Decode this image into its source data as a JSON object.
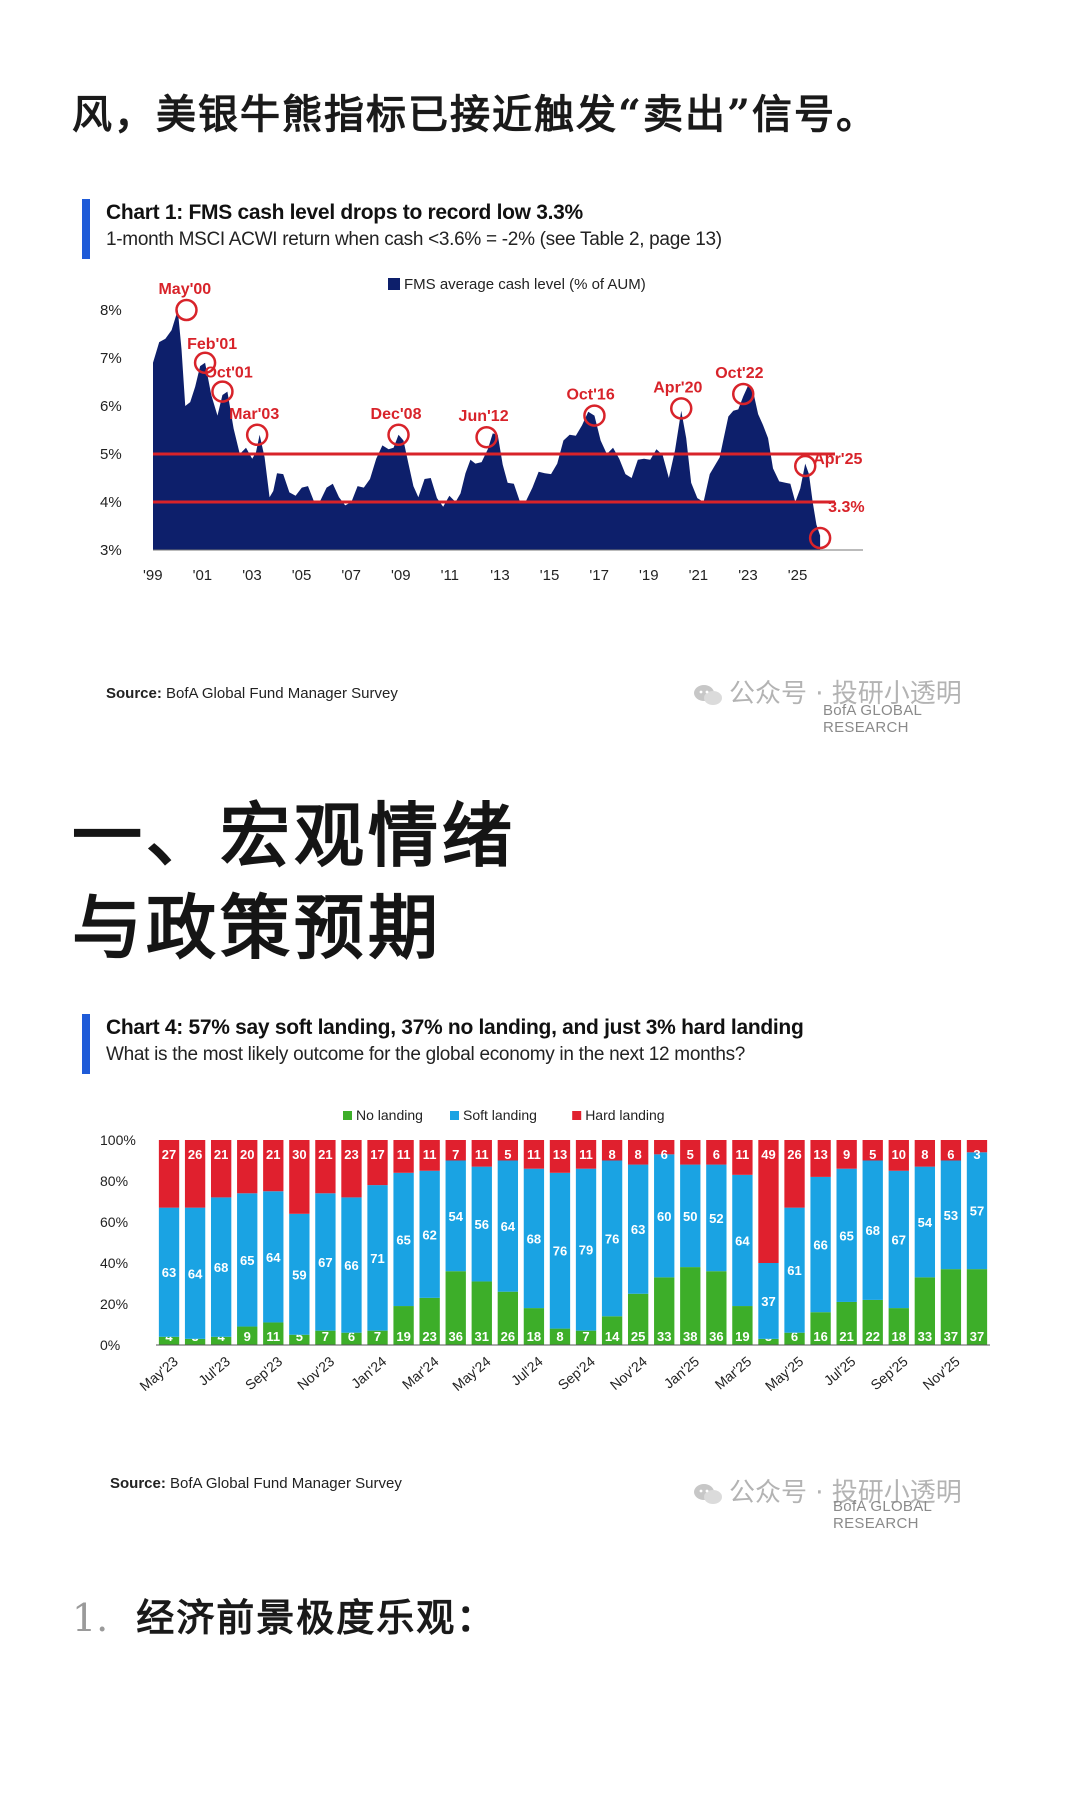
{
  "intro_text": "风，美银牛熊指标已接近触发“卖出”信号。",
  "section_heading": {
    "line1": "一、宏观情绪",
    "line2": "与政策预期"
  },
  "list_item": {
    "number": "1.",
    "text": "经济前景极度乐观："
  },
  "watermark": {
    "icon": "wechat-icon",
    "text": "公众号 · 投研小透明",
    "brand": "BofA GLOBAL RESEARCH"
  },
  "chart1": {
    "title": "Chart 1: FMS cash level drops to record low 3.3%",
    "subtitle": "1-month MSCI ACWI return when cash <3.6% = -2% (see Table 2, page 13)",
    "source_label": "Source:",
    "source_text": "BofA Global Fund Manager Survey"
  },
  "chart2": {
    "title": "Chart 4: 57% say soft landing, 37% no landing, and just 3% hard landing",
    "subtitle": "What is the most likely outcome for the global economy in the next 12 months?",
    "source_label": "Source:",
    "source_text": "BofA Global Fund Manager Survey"
  },
  "chart_data": [
    {
      "type": "area",
      "title": "Chart 1: FMS cash level drops to record low 3.3%",
      "subtitle": "1-month MSCI ACWI return when cash <3.6% = -2% (see Table 2, page 13)",
      "series": [
        {
          "name": "FMS average cash level (% of AUM)",
          "color": "#0d1f6b",
          "x": [
            1999.0,
            1999.5,
            2000.0,
            2000.3,
            2000.7,
            2001.1,
            2001.6,
            2002.0,
            2002.5,
            2003.0,
            2003.3,
            2003.7,
            2004.0,
            2004.5,
            2005.0,
            2005.5,
            2006.0,
            2006.5,
            2007.0,
            2007.5,
            2008.0,
            2008.5,
            2008.9,
            2009.3,
            2009.7,
            2010.2,
            2010.7,
            2011.2,
            2011.6,
            2012.0,
            2012.5,
            2012.9,
            2013.3,
            2013.8,
            2014.3,
            2014.8,
            2015.3,
            2015.8,
            2016.3,
            2016.8,
            2017.3,
            2017.8,
            2018.3,
            2018.8,
            2019.3,
            2019.8,
            2020.3,
            2020.7,
            2021.2,
            2021.7,
            2022.0,
            2022.4,
            2022.8,
            2023.2,
            2023.6,
            2024.0,
            2024.5,
            2024.9,
            2025.3,
            2025.6,
            2025.9
          ],
          "values": [
            6.9,
            7.4,
            8.0,
            6.0,
            6.4,
            6.9,
            5.8,
            6.3,
            5.0,
            4.9,
            5.4,
            4.1,
            4.6,
            4.2,
            4.3,
            4.0,
            4.3,
            4.1,
            4.0,
            4.3,
            4.9,
            5.1,
            5.4,
            4.8,
            4.1,
            4.5,
            3.9,
            4.0,
            4.6,
            4.8,
            5.1,
            5.4,
            4.4,
            4.0,
            4.3,
            4.6,
            4.8,
            5.4,
            5.6,
            5.8,
            5.0,
            4.9,
            4.5,
            4.9,
            5.1,
            4.5,
            5.9,
            4.4,
            4.0,
            4.8,
            5.3,
            5.9,
            6.2,
            6.3,
            5.6,
            4.7,
            4.4,
            4.0,
            4.8,
            4.0,
            3.3
          ]
        }
      ],
      "ylim": [
        3,
        8
      ],
      "ytick_labels": [
        "3%",
        "4%",
        "5%",
        "6%",
        "7%",
        "8%"
      ],
      "xtick_labels": [
        "'99",
        "'01",
        "'03",
        "'05",
        "'07",
        "'09",
        "'11",
        "'13",
        "'15",
        "'17",
        "'19",
        "'21",
        "'23",
        "'25"
      ],
      "reference_lines": [
        5.0,
        4.0
      ],
      "annotations": [
        {
          "label": "May'00",
          "x": 2000.35,
          "y": 8.0
        },
        {
          "label": "Feb'01",
          "x": 2001.1,
          "y": 6.9
        },
        {
          "label": "Oct'01",
          "x": 2001.8,
          "y": 6.3
        },
        {
          "label": "Mar'03",
          "x": 2003.2,
          "y": 5.4
        },
        {
          "label": "Dec'08",
          "x": 2008.9,
          "y": 5.4
        },
        {
          "label": "Jun'12",
          "x": 2012.45,
          "y": 5.35
        },
        {
          "label": "Oct'16",
          "x": 2016.8,
          "y": 5.8
        },
        {
          "label": "Apr'20",
          "x": 2020.3,
          "y": 5.95
        },
        {
          "label": "Oct'22",
          "x": 2022.8,
          "y": 6.25
        },
        {
          "label": "Apr'25",
          "x": 2025.3,
          "y": 4.75
        },
        {
          "label": "3.3%",
          "x": 2025.9,
          "y": 3.25
        }
      ],
      "legend": "top-center"
    },
    {
      "type": "bar",
      "stacked": true,
      "title": "Chart 4: 57% say soft landing, 37% no landing, and just 3% hard landing",
      "subtitle": "What is the most likely outcome for the global economy in the next 12 months?",
      "xtick_labels": [
        "May'23",
        "Jul'23",
        "Sep'23",
        "Nov'23",
        "Jan'24",
        "Mar'24",
        "May'24",
        "Jul'24",
        "Sep'24",
        "Nov'24",
        "Jan'25",
        "Mar'25",
        "May'25",
        "Jul'25",
        "Sep'25",
        "Nov'25"
      ],
      "ylim": [
        0,
        100
      ],
      "ytick_labels": [
        "0%",
        "20%",
        "40%",
        "60%",
        "80%",
        "100%"
      ],
      "legend": "top-center",
      "series": [
        {
          "name": "No landing",
          "color": "#3dae29",
          "values": [
            4,
            3,
            4,
            9,
            11,
            5,
            7,
            6,
            7,
            19,
            23,
            36,
            31,
            26,
            18,
            8,
            7,
            14,
            25,
            33,
            38,
            36,
            19,
            3,
            6,
            16,
            21,
            22,
            18,
            33,
            37,
            37
          ]
        },
        {
          "name": "Soft landing",
          "color": "#1aa3e3",
          "values": [
            63,
            64,
            68,
            65,
            64,
            59,
            67,
            66,
            71,
            65,
            62,
            54,
            56,
            64,
            68,
            76,
            79,
            76,
            63,
            60,
            50,
            52,
            64,
            37,
            61,
            66,
            65,
            68,
            67,
            54,
            53,
            57
          ]
        },
        {
          "name": "Hard landing",
          "color": "#e0202e",
          "values": [
            27,
            26,
            21,
            20,
            21,
            30,
            21,
            23,
            17,
            11,
            11,
            7,
            11,
            5,
            11,
            13,
            11,
            8,
            8,
            6,
            5,
            6,
            11,
            49,
            26,
            13,
            9,
            5,
            10,
            8,
            6,
            3
          ]
        }
      ]
    }
  ]
}
